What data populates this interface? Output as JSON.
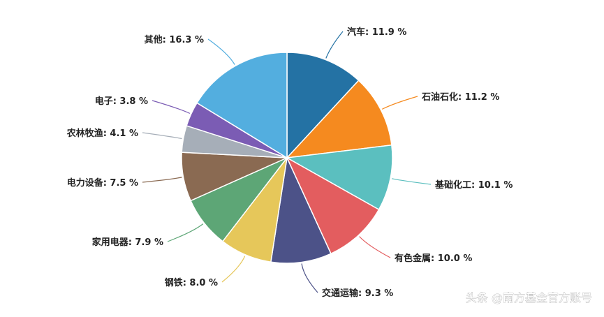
{
  "chart_data": {
    "type": "pie",
    "start": "top",
    "direction": "clockwise",
    "series": [
      {
        "name": "汽车",
        "label": "汽车: 11.9 %",
        "value": 11.9,
        "color": "#2472a4"
      },
      {
        "name": "石油石化",
        "label": "石油石化: 11.2 %",
        "value": 11.2,
        "color": "#f58a1f"
      },
      {
        "name": "基础化工",
        "label": "基础化工: 10.1 %",
        "value": 10.1,
        "color": "#5bbfbf"
      },
      {
        "name": "有色金属",
        "label": "有色金属: 10.0 %",
        "value": 10.0,
        "color": "#e35d5f"
      },
      {
        "name": "交通运输",
        "label": "交通运输: 9.3 %",
        "value": 9.3,
        "color": "#4c5288"
      },
      {
        "name": "钢铁",
        "label": "钢铁: 8.0 %",
        "value": 8.0,
        "color": "#e6c75a"
      },
      {
        "name": "家用电器",
        "label": "家用电器: 7.9 %",
        "value": 7.9,
        "color": "#5da676"
      },
      {
        "name": "电力设备",
        "label": "电力设备: 7.5 %",
        "value": 7.5,
        "color": "#8a6a52"
      },
      {
        "name": "农林牧渔",
        "label": "农林牧渔: 4.1 %",
        "value": 4.1,
        "color": "#a6aeb8"
      },
      {
        "name": "电子",
        "label": "电子: 3.8 %",
        "value": 3.8,
        "color": "#7b5cb4"
      },
      {
        "name": "其他",
        "label": "其他: 16.3 %",
        "value": 16.3,
        "color": "#53aedf"
      }
    ]
  },
  "watermark": {
    "text": "头条 @南方基金官方账号"
  }
}
